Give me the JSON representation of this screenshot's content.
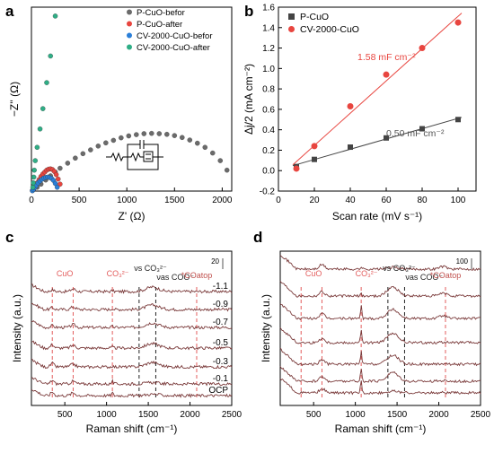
{
  "chart_data": [
    {
      "panel": "a",
      "type": "scatter",
      "xlabel": "Z' (Ω)",
      "ylabel": "−Z'' (Ω)",
      "xlim": [
        0,
        2100
      ],
      "ylim": [
        0,
        2900
      ],
      "x_ticks": [
        "0",
        "500",
        "1000",
        "1500",
        "2000"
      ],
      "legend_position": "top-right",
      "inset": "equivalent-circuit",
      "series": [
        {
          "name": "P-CuO-befor",
          "color": "#6b6b6b",
          "x": [
            20,
            60,
            100,
            150,
            200,
            250,
            300,
            380,
            460,
            540,
            620,
            700,
            780,
            860,
            940,
            1020,
            1100,
            1180,
            1260,
            1340,
            1420,
            1500,
            1580,
            1660,
            1740,
            1820,
            1900,
            1980,
            2050
          ],
          "y": [
            20,
            60,
            110,
            175,
            240,
            300,
            360,
            440,
            520,
            590,
            650,
            710,
            760,
            800,
            840,
            870,
            890,
            905,
            910,
            905,
            895,
            875,
            845,
            805,
            755,
            690,
            600,
            480,
            330
          ]
        },
        {
          "name": "P-CuO-after",
          "color": "#e8453f",
          "x": [
            10,
            25,
            40,
            60,
            80,
            100,
            120,
            140,
            160,
            180,
            200,
            220,
            240,
            260,
            280,
            300
          ],
          "y": [
            10,
            40,
            80,
            130,
            180,
            230,
            270,
            300,
            330,
            345,
            350,
            340,
            310,
            260,
            190,
            110
          ]
        },
        {
          "name": "CV-2000-CuO-befor",
          "color": "#2a7fd8",
          "x": [
            10,
            20,
            35,
            50,
            70,
            90,
            110,
            130,
            150,
            170,
            190,
            210,
            230,
            250,
            270
          ],
          "y": [
            5,
            25,
            55,
            90,
            130,
            160,
            185,
            205,
            215,
            220,
            215,
            200,
            170,
            120,
            60
          ]
        },
        {
          "name": "CV-2000-CuO-after",
          "color": "#2fae86",
          "x": [
            15,
            20,
            25,
            30,
            40,
            60,
            90,
            120,
            160,
            200,
            250
          ],
          "y": [
            60,
            130,
            220,
            330,
            480,
            690,
            980,
            1300,
            1710,
            2130,
            2760
          ]
        }
      ]
    },
    {
      "panel": "b",
      "type": "scatter",
      "xlabel": "Scan rate (mV s⁻¹)",
      "ylabel": "Δj/2 (mA cm⁻²)",
      "xlim": [
        0,
        110
      ],
      "ylim": [
        -0.2,
        1.6
      ],
      "x_ticks": [
        "0",
        "20",
        "40",
        "60",
        "80",
        "100"
      ],
      "y_ticks": [
        "-0.2",
        "0.0",
        "0.2",
        "0.4",
        "0.6",
        "0.8",
        "1.0",
        "1.2",
        "1.4",
        "1.6"
      ],
      "legend_position": "top-left",
      "series": [
        {
          "name": "P-CuO",
          "color": "#444444",
          "marker": "square",
          "x": [
            10,
            20,
            40,
            60,
            80,
            100
          ],
          "y": [
            0.04,
            0.11,
            0.23,
            0.32,
            0.41,
            0.5
          ],
          "fit_label": "0.50 mF cm⁻²"
        },
        {
          "name": "CV-2000-CuO",
          "color": "#e8453f",
          "marker": "circle",
          "x": [
            10,
            20,
            40,
            60,
            80,
            100
          ],
          "y": [
            0.02,
            0.24,
            0.63,
            0.94,
            1.2,
            1.45
          ],
          "fit_label": "1.58 mF cm⁻²"
        }
      ]
    },
    {
      "panel": "c",
      "type": "line",
      "xlabel": "Raman shift (cm⁻¹)",
      "ylabel": "Intensity (a.u.)",
      "xlim": [
        100,
        2500
      ],
      "x_ticks": [
        "500",
        "1000",
        "1500",
        "2000",
        "2500"
      ],
      "scale_bar": "20",
      "series_labels": [
        "-1.1",
        "-0.9",
        "-0.7",
        "-0.5",
        "-0.3",
        "-0.1",
        "OCP"
      ],
      "annotations": [
        "CuO",
        "CO₃²⁻",
        "νs CO₃²⁻",
        "νas COO⁻",
        "*COatop"
      ],
      "marker_lines": [
        350,
        600,
        1070,
        1390,
        1590,
        2080
      ]
    },
    {
      "panel": "d",
      "type": "line",
      "xlabel": "Raman shift (cm⁻¹)",
      "ylabel": "Intensity (a.u.)",
      "xlim": [
        100,
        2500
      ],
      "x_ticks": [
        "500",
        "1000",
        "1500",
        "2000",
        "2500"
      ],
      "scale_bar": "100",
      "series_count": 7,
      "annotations": [
        "CuO",
        "CO₃²⁻",
        "νs CO₃²⁻",
        "νas COO⁻",
        "*COatop"
      ],
      "marker_lines": [
        350,
        600,
        1070,
        1390,
        1590,
        2080
      ]
    }
  ],
  "panels": {
    "a": {
      "letter": "a"
    },
    "b": {
      "letter": "b"
    },
    "c": {
      "letter": "c"
    },
    "d": {
      "letter": "d"
    }
  }
}
